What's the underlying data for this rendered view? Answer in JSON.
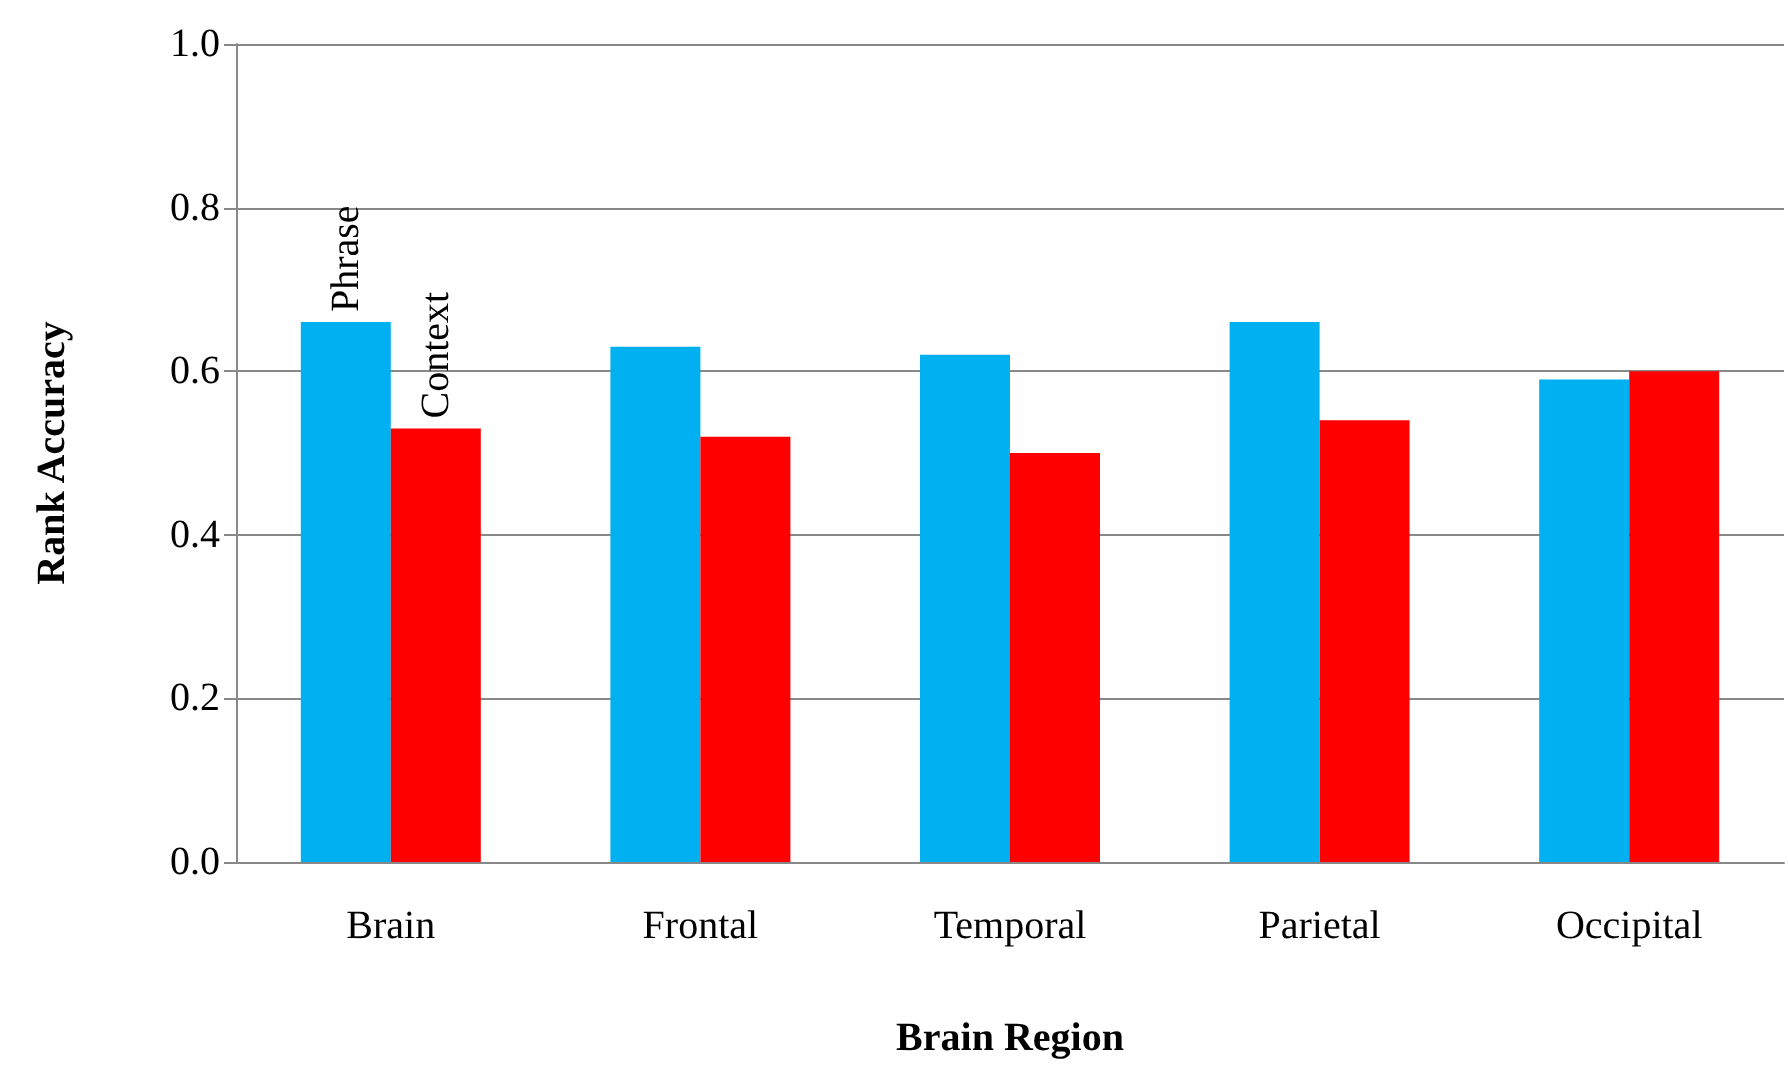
{
  "chart_data": {
    "type": "bar",
    "xlabel": "Brain Region",
    "ylabel": "Rank Accuracy",
    "categories": [
      "Brain",
      "Frontal",
      "Temporal",
      "Parietal",
      "Occipital"
    ],
    "series": [
      {
        "name": "Phrase",
        "color": "#00b0f0",
        "values": [
          0.66,
          0.63,
          0.62,
          0.66,
          0.59
        ]
      },
      {
        "name": "Context",
        "color": "#ff0000",
        "values": [
          0.53,
          0.52,
          0.5,
          0.54,
          0.6
        ]
      }
    ],
    "ylim": [
      0,
      1
    ],
    "yticks": [
      {
        "value": 0,
        "label": "0.0"
      },
      0.2,
      0.4,
      0.6,
      0.8,
      {
        "value": 1,
        "label": "1.0"
      }
    ],
    "grid": "y",
    "legend": false
  }
}
